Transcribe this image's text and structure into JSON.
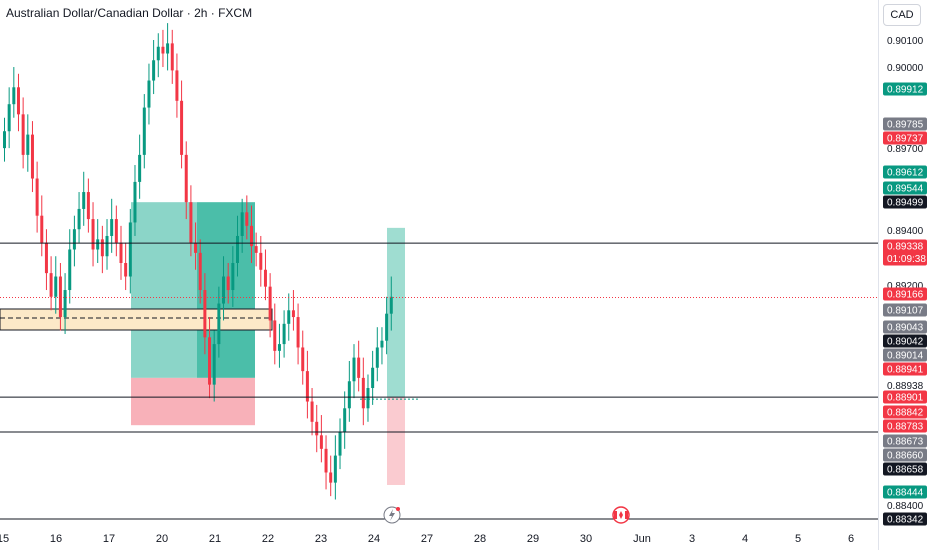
{
  "header": {
    "title": "Australian Dollar/Canadian Dollar · 2h · FXCM",
    "currency": "CAD"
  },
  "colors": {
    "up": "#089981",
    "down": "#f23645",
    "line": "#131722",
    "zone_fill": "#fce9c8",
    "tp_fill": "#2bb39a",
    "sl_fill": "#f7a9b1",
    "current_price_line": "#f23645",
    "grey_badge": "#787b86",
    "black_badge": "#131722"
  },
  "price_axis": {
    "labels": [
      "0.90100",
      "0.90000",
      "0.89700",
      "0.89400",
      "0.89200",
      "0.88938",
      "0.88400"
    ],
    "badges": [
      {
        "text": "0.89912",
        "color": "green"
      },
      {
        "text": "0.89785",
        "color": "grey"
      },
      {
        "text": "0.89737",
        "color": "red"
      },
      {
        "text": "0.89612",
        "color": "green"
      },
      {
        "text": "0.89544",
        "color": "green"
      },
      {
        "text": "0.89499",
        "color": "black"
      },
      {
        "text": "0.89338",
        "sub": "01:09:38",
        "color": "red"
      },
      {
        "text": "0.89166",
        "color": "red"
      },
      {
        "text": "0.89107",
        "color": "grey"
      },
      {
        "text": "0.89043",
        "color": "grey"
      },
      {
        "text": "0.89042",
        "color": "black"
      },
      {
        "text": "0.89014",
        "color": "grey"
      },
      {
        "text": "0.88941",
        "color": "red"
      },
      {
        "text": "0.88901",
        "color": "red"
      },
      {
        "text": "0.88842",
        "color": "red"
      },
      {
        "text": "0.88783",
        "color": "red"
      },
      {
        "text": "0.88673",
        "color": "grey"
      },
      {
        "text": "0.88660",
        "color": "grey"
      },
      {
        "text": "0.88658",
        "color": "black"
      },
      {
        "text": "0.88444",
        "color": "green"
      },
      {
        "text": "0.88342",
        "color": "black"
      }
    ]
  },
  "time_axis": {
    "labels": [
      "15",
      "16",
      "17",
      "20",
      "21",
      "22",
      "23",
      "24",
      "27",
      "28",
      "29",
      "30",
      "Jun",
      "3",
      "4",
      "5",
      "6"
    ]
  },
  "icons": {
    "flash_event": "flash-icon",
    "canada_event": "canada-flag-icon"
  }
}
